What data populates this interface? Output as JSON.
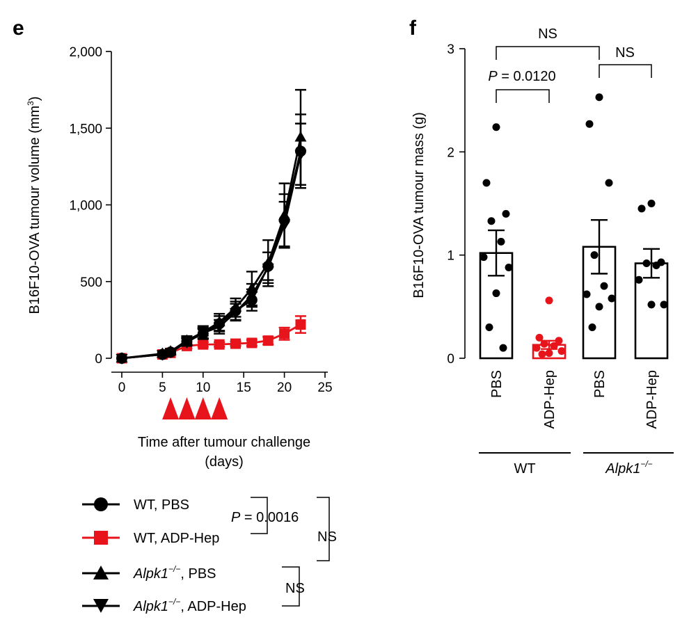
{
  "chart_data": [
    {
      "panel": "e",
      "type": "line",
      "xlabel_line1": "Time after tumour challenge",
      "xlabel_line2": "(days)",
      "ylabel": "B16F10-OVA tumour volume (mm",
      "ylabel_sup": "3",
      "ylabel_close": ")",
      "xlim": [
        0,
        25
      ],
      "ylim": [
        0,
        2000
      ],
      "x_ticks": [
        "0",
        "5",
        "10",
        "15",
        "20",
        "25"
      ],
      "x_tick_values": [
        0,
        5,
        10,
        15,
        20,
        25
      ],
      "y_ticks": [
        "0",
        "500",
        "1,000",
        "1,500",
        "2,000"
      ],
      "y_tick_values": [
        0,
        500,
        1000,
        1500,
        2000
      ],
      "treatment_days": [
        6,
        8,
        10,
        12
      ],
      "series": [
        {
          "name": "WT, PBS",
          "marker": "circle",
          "color": "#000000",
          "x": [
            0,
            5,
            6,
            8,
            10,
            12,
            14,
            16,
            18,
            20,
            22
          ],
          "y": [
            0,
            25,
            40,
            110,
            160,
            225,
            310,
            380,
            600,
            900,
            1350
          ],
          "err": [
            10,
            10,
            15,
            25,
            35,
            50,
            60,
            70,
            90,
            170,
            240
          ]
        },
        {
          "name": "WT, ADP-Hep",
          "marker": "square",
          "color": "#e8141b",
          "x": [
            0,
            5,
            6,
            8,
            10,
            12,
            14,
            16,
            18,
            20,
            22
          ],
          "y": [
            0,
            25,
            35,
            80,
            90,
            90,
            95,
            100,
            115,
            160,
            220
          ],
          "err": [
            10,
            10,
            10,
            15,
            15,
            15,
            15,
            20,
            25,
            40,
            55
          ]
        },
        {
          "name_italic": "Alpk1",
          "name_sup": "−/−",
          "name_rest": ", PBS",
          "marker": "triangle-up",
          "color": "#000000",
          "x": [
            0,
            5,
            6,
            8,
            10,
            12,
            14,
            16,
            18,
            20,
            22
          ],
          "y": [
            0,
            30,
            45,
            115,
            170,
            235,
            330,
            455,
            620,
            930,
            1440
          ],
          "err": [
            10,
            10,
            15,
            30,
            40,
            55,
            60,
            110,
            150,
            210,
            310
          ]
        },
        {
          "name_italic": "Alpk1",
          "name_sup": "−/−",
          "name_rest": ", ADP-Hep",
          "marker": "triangle-down",
          "color": "#000000",
          "x": [
            0,
            5,
            6,
            8,
            10,
            12,
            14,
            16,
            18,
            20,
            22
          ],
          "y": [
            0,
            25,
            40,
            105,
            165,
            205,
            300,
            410,
            590,
            870,
            1330
          ],
          "err": [
            10,
            10,
            15,
            25,
            35,
            45,
            55,
            75,
            100,
            150,
            200
          ]
        }
      ],
      "annotations": {
        "p_italic": "P",
        "p_rest": " = 0.0016",
        "ns1": "NS",
        "ns2": "NS"
      }
    },
    {
      "panel": "f",
      "type": "bar",
      "ylabel": "B16F10-OVA tumour mass (g)",
      "ylim": [
        0,
        3
      ],
      "y_ticks": [
        "0",
        "1",
        "2",
        "3"
      ],
      "y_tick_values": [
        0,
        1,
        2,
        3
      ],
      "categories": [
        "PBS",
        "ADP-Hep",
        "PBS",
        "ADP-Hep"
      ],
      "groups": [
        {
          "label": "WT"
        },
        {
          "label_italic": "Alpk1",
          "label_sup": "−/−"
        }
      ],
      "values": [
        1.02,
        0.13,
        1.08,
        0.92
      ],
      "errors": [
        0.22,
        0.04,
        0.26,
        0.14
      ],
      "bar_colors": [
        "#000000",
        "#e8141b",
        "#000000",
        "#000000"
      ],
      "points": [
        [
          2.24,
          1.7,
          1.4,
          1.33,
          1.13,
          0.98,
          0.88,
          0.63,
          0.3,
          0.1
        ],
        [
          0.56,
          0.2,
          0.17,
          0.14,
          0.12,
          0.1,
          0.07,
          0.05,
          0.04
        ],
        [
          2.53,
          2.27,
          1.7,
          1.0,
          0.7,
          0.62,
          0.58,
          0.5,
          0.3
        ],
        [
          1.5,
          1.45,
          0.93,
          0.92,
          0.9,
          0.76,
          0.52,
          0.52
        ]
      ],
      "annotations": {
        "ns_top": "NS",
        "ns_right": "NS",
        "p_italic": "P",
        "p_rest": " = 0.0120"
      }
    }
  ],
  "panel_letters": [
    "e",
    "f"
  ]
}
